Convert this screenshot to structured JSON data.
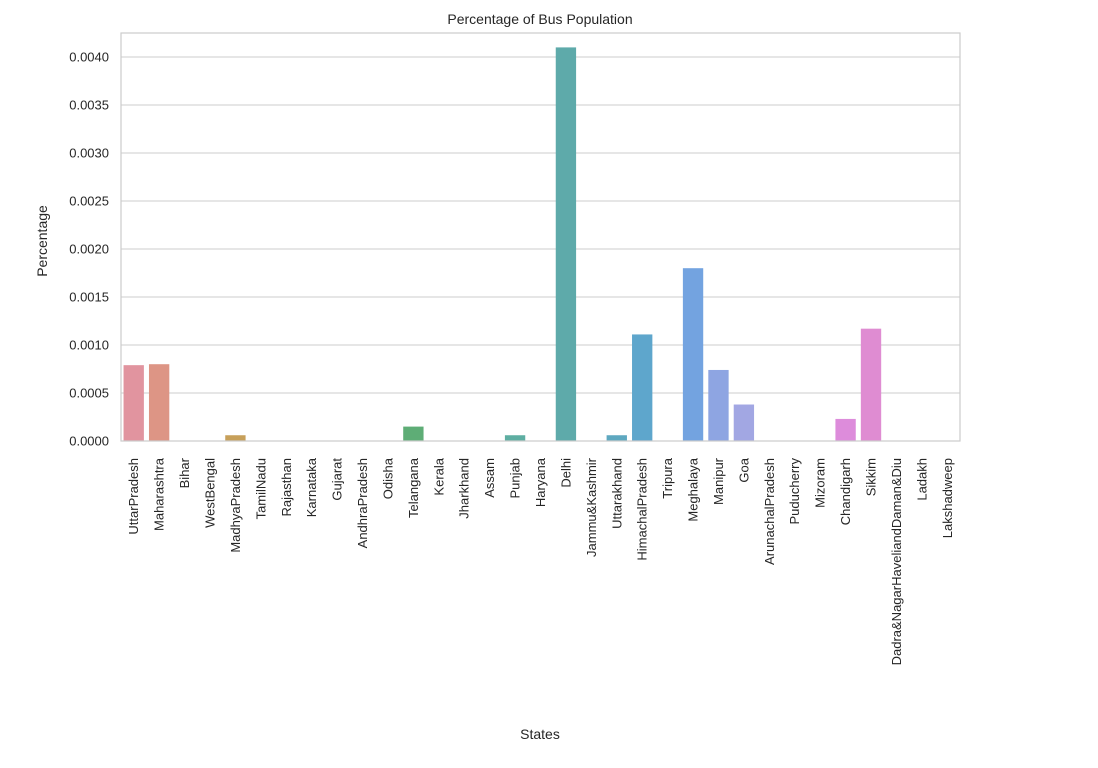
{
  "chart_data": {
    "type": "bar",
    "title": "Percentage of Bus Population",
    "xlabel": "States",
    "ylabel": "Percentage",
    "ylim": [
      0,
      0.00425
    ],
    "yticks": [
      "0.0000",
      "0.0005",
      "0.0010",
      "0.0015",
      "0.0020",
      "0.0025",
      "0.0030",
      "0.0035",
      "0.0040"
    ],
    "grid": "horizontal",
    "categories": [
      "UttarPradesh",
      "Maharashtra",
      "Bihar",
      "WestBengal",
      "MadhyaPradesh",
      "TamilNadu",
      "Rajasthan",
      "Karnataka",
      "Gujarat",
      "AndhraPradesh",
      "Odisha",
      "Telangana",
      "Kerala",
      "Jharkhand",
      "Assam",
      "Punjab",
      "Haryana",
      "Delhi",
      "Jammu&Kashmir",
      "Uttarakhand",
      "HimachalPradesh",
      "Tripura",
      "Meghalaya",
      "Manipur",
      "Goa",
      "ArunachalPradesh",
      "Puducherry",
      "Mizoram",
      "Chandigarh",
      "Sikkim",
      "Dadra&NagarHaveliandDaman&Diu",
      "Ladakh",
      "Lakshadweep"
    ],
    "values": [
      0.00079,
      0.0008,
      0.0,
      0.0,
      6e-05,
      0.0,
      0.0,
      0.0,
      0.0,
      0.0,
      0.0,
      0.00015,
      0.0,
      0.0,
      0.0,
      6e-05,
      0.0,
      0.0041,
      0.0,
      6e-05,
      0.00111,
      0.0,
      0.0018,
      0.00074,
      0.00038,
      0.0,
      0.0,
      0.0,
      0.00023,
      0.00117,
      0.0,
      0.0,
      0.0
    ],
    "colors": [
      "#e1949f",
      "#dd9585",
      "#d09a72",
      "#c99e66",
      "#c7a05a",
      "#b3a65a",
      "#a6ab5a",
      "#97b05a",
      "#87b35f",
      "#74b366",
      "#5fb16c",
      "#5ead76",
      "#5eaf83",
      "#5eaf8e",
      "#5eaf98",
      "#5eaea2",
      "#5eacab",
      "#5eaaaa",
      "#5fa8b7",
      "#5ea8c0",
      "#5ea6cc",
      "#6ca3da",
      "#73a3e0",
      "#8ea5e2",
      "#a2a7e3",
      "#b6a6e2",
      "#c69be3",
      "#d292e0",
      "#dd8cdb",
      "#df8cd2",
      "#e08ec9",
      "#e191bd",
      "#e293b2"
    ]
  }
}
